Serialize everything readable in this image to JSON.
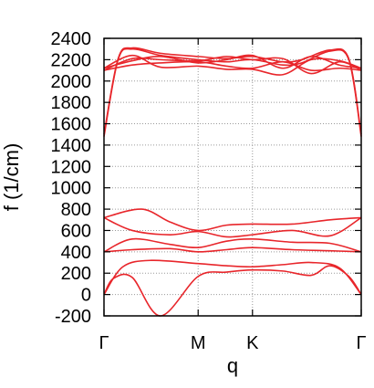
{
  "chart_data": {
    "type": "line",
    "title": "",
    "xlabel": "q",
    "ylabel": "f (1/cm)",
    "ylim": [
      -200,
      2400
    ],
    "y_ticks": [
      -200,
      0,
      200,
      400,
      600,
      800,
      1000,
      1200,
      1400,
      1600,
      1800,
      2000,
      2200,
      2400
    ],
    "x_ticks": [
      {
        "label": "Γ",
        "q": 0
      },
      {
        "label": "M",
        "q": 1
      },
      {
        "label": "K",
        "q": 1.577
      },
      {
        "label": "Γ",
        "q": 2.732
      }
    ],
    "grid": true,
    "line_color": "#e8262b",
    "series": [
      {
        "x": [
          0,
          0.1,
          0.3,
          0.6,
          1.0,
          1.3,
          1.577,
          1.9,
          2.2,
          2.4,
          2.6,
          2.732
        ],
        "y": [
          0,
          150,
          160,
          -200,
          170,
          210,
          230,
          220,
          180,
          270,
          170,
          0
        ]
      },
      {
        "x": [
          0,
          0.2,
          0.5,
          1.0,
          1.3,
          1.577,
          1.9,
          2.2,
          2.5,
          2.732
        ],
        "y": [
          0,
          260,
          320,
          290,
          270,
          260,
          280,
          300,
          250,
          0
        ]
      },
      {
        "x": [
          0,
          0.3,
          0.7,
          1.0,
          1.3,
          1.577,
          2.0,
          2.4,
          2.732
        ],
        "y": [
          400,
          420,
          430,
          400,
          420,
          440,
          420,
          410,
          400
        ]
      },
      {
        "x": [
          0,
          0.3,
          0.7,
          1.0,
          1.3,
          1.577,
          2.0,
          2.4,
          2.732
        ],
        "y": [
          400,
          520,
          470,
          440,
          500,
          520,
          490,
          480,
          400
        ]
      },
      {
        "x": [
          0,
          0.3,
          0.7,
          1.0,
          1.3,
          1.577,
          2.0,
          2.4,
          2.732
        ],
        "y": [
          720,
          600,
          560,
          590,
          540,
          560,
          600,
          550,
          720
        ]
      },
      {
        "x": [
          0,
          0.4,
          0.7,
          1.0,
          1.3,
          1.577,
          2.0,
          2.4,
          2.732
        ],
        "y": [
          720,
          800,
          680,
          600,
          650,
          660,
          660,
          700,
          720
        ]
      },
      {
        "x": [
          0,
          0.15,
          0.3,
          0.6,
          1.0,
          1.3,
          1.577,
          1.9,
          2.1,
          2.4,
          2.6,
          2.732
        ],
        "y": [
          1480,
          2200,
          2300,
          2240,
          2200,
          2180,
          2200,
          2150,
          2170,
          2280,
          2200,
          1480
        ]
      },
      {
        "x": [
          0,
          0.15,
          0.3,
          0.6,
          1.0,
          1.3,
          1.577,
          1.9,
          2.1,
          2.4,
          2.6,
          2.732
        ],
        "y": [
          1500,
          2210,
          2310,
          2260,
          2230,
          2210,
          2230,
          2180,
          2200,
          2290,
          2210,
          1500
        ]
      },
      {
        "x": [
          0,
          0.3,
          0.6,
          1.0,
          1.3,
          1.577,
          1.9,
          2.2,
          2.5,
          2.732
        ],
        "y": [
          2120,
          2190,
          2230,
          2170,
          2200,
          2240,
          2120,
          2230,
          2150,
          2120
        ]
      },
      {
        "x": [
          0,
          0.3,
          0.6,
          1.0,
          1.3,
          1.577,
          1.9,
          2.2,
          2.5,
          2.732
        ],
        "y": [
          2120,
          2240,
          2130,
          2140,
          2110,
          2110,
          2060,
          2200,
          2190,
          2120
        ]
      },
      {
        "x": [
          0,
          0.3,
          0.6,
          1.0,
          1.3,
          1.577,
          1.9,
          2.2,
          2.5,
          2.732
        ],
        "y": [
          2100,
          2150,
          2170,
          2180,
          2140,
          2120,
          2180,
          2100,
          2120,
          2100
        ]
      },
      {
        "x": [
          0,
          0.3,
          0.6,
          1.0,
          1.3,
          1.577,
          1.9,
          2.2,
          2.5,
          2.732
        ],
        "y": [
          2100,
          2210,
          2200,
          2190,
          2230,
          2200,
          2210,
          2070,
          2180,
          2100
        ]
      }
    ]
  }
}
